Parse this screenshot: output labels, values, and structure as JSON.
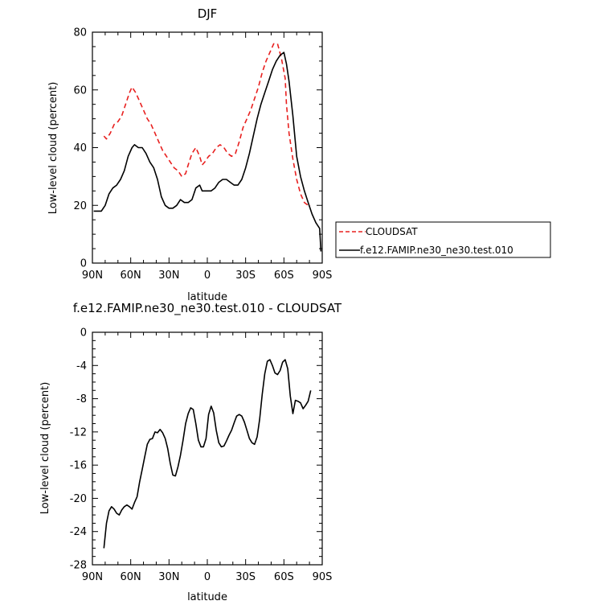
{
  "chart_data": [
    {
      "type": "line",
      "title": "DJF",
      "xlabel": "latitude",
      "ylabel": "Low-level cloud (percent)",
      "xlim": [
        -90,
        90
      ],
      "ylim": [
        0,
        80
      ],
      "x_ticks": [
        "90N",
        "60N",
        "30N",
        "0",
        "30S",
        "60S",
        "90S"
      ],
      "y_ticks": [
        "0",
        "20",
        "40",
        "60",
        "80"
      ],
      "legend_position": "right",
      "series": [
        {
          "name": "CLOUDSAT",
          "color": "#e8201f",
          "dash": "dashed",
          "x": [
            -81,
            -79,
            -76,
            -73,
            -70,
            -67,
            -64,
            -61,
            -59,
            -56,
            -53,
            -50,
            -47,
            -44,
            -41,
            -38,
            -35,
            -32,
            -29,
            -26,
            -23,
            -20,
            -17,
            -15,
            -12,
            -9,
            -6,
            -4,
            -2,
            1,
            4,
            7,
            10,
            13,
            16,
            19,
            22,
            25,
            28,
            31,
            34,
            37,
            40,
            43,
            46,
            49,
            52,
            55,
            58,
            61,
            62,
            64,
            67,
            70,
            73,
            76,
            79,
            81
          ],
          "values": [
            44,
            43,
            45,
            48,
            49,
            51,
            55,
            59,
            61,
            59,
            56,
            53,
            50,
            48,
            45,
            42,
            39,
            37,
            35,
            33,
            32,
            30,
            31,
            34,
            38,
            40,
            37,
            34,
            35,
            37,
            38,
            40,
            41,
            40,
            38,
            37,
            38,
            42,
            47,
            50,
            53,
            57,
            61,
            66,
            70,
            73,
            76,
            76,
            71,
            64,
            55,
            45,
            36,
            29,
            24,
            21,
            20,
            20
          ]
        },
        {
          "name": "f.e12.FAMIP.ne30_ne30.test.010",
          "color": "#000000",
          "dash": "solid",
          "x": [
            -89,
            -86,
            -83,
            -80,
            -77,
            -74,
            -71,
            -68,
            -65,
            -62,
            -59,
            -57,
            -54,
            -51,
            -48,
            -45,
            -42,
            -39,
            -36,
            -33,
            -30,
            -27,
            -24,
            -21,
            -18,
            -15,
            -12,
            -9,
            -6,
            -4,
            -2,
            0,
            3,
            6,
            9,
            12,
            15,
            18,
            21,
            24,
            27,
            30,
            33,
            36,
            39,
            42,
            45,
            48,
            51,
            54,
            57,
            60,
            62,
            64,
            67,
            70,
            73,
            76,
            79,
            82,
            85,
            88,
            89
          ],
          "values": [
            18,
            18,
            18,
            20,
            24,
            26,
            27,
            29,
            32,
            37,
            40,
            41,
            40,
            40,
            38,
            35,
            33,
            29,
            23,
            20,
            19,
            19,
            20,
            22,
            21,
            21,
            22,
            26,
            27,
            25,
            25,
            25,
            25,
            26,
            28,
            29,
            29,
            28,
            27,
            27,
            29,
            33,
            38,
            44,
            50,
            55,
            59,
            63,
            67,
            70,
            72,
            73,
            69,
            63,
            51,
            37,
            30,
            25,
            21,
            17,
            14,
            12,
            4
          ]
        }
      ]
    },
    {
      "type": "line",
      "title": "f.e12.FAMIP.ne30_ne30.test.010 - CLOUDSAT",
      "xlabel": "latitude",
      "ylabel": "Low-level cloud (percent)",
      "xlim": [
        -90,
        90
      ],
      "ylim": [
        -28,
        0
      ],
      "x_ticks": [
        "90N",
        "60N",
        "30N",
        "0",
        "30S",
        "60S",
        "90S"
      ],
      "y_ticks": [
        "-28",
        "-24",
        "-20",
        "-16",
        "-12",
        "-8",
        "-4",
        "0"
      ],
      "series": [
        {
          "color": "#000000",
          "dash": "solid",
          "x": [
            -81,
            -79,
            -77,
            -75,
            -73,
            -71,
            -69,
            -67,
            -65,
            -63,
            -61,
            -59,
            -57,
            -55,
            -53,
            -51,
            -49,
            -47,
            -45,
            -43,
            -41,
            -39,
            -37,
            -35,
            -33,
            -31,
            -29,
            -27,
            -25,
            -23,
            -21,
            -19,
            -17,
            -15,
            -13,
            -11,
            -9,
            -7,
            -5,
            -3,
            -1,
            1,
            3,
            5,
            7,
            9,
            11,
            13,
            15,
            17,
            19,
            21,
            23,
            25,
            27,
            29,
            31,
            33,
            35,
            37,
            39,
            41,
            43,
            45,
            47,
            49,
            51,
            53,
            55,
            57,
            59,
            61,
            63,
            65,
            67,
            69,
            71,
            73,
            75,
            77,
            79,
            81
          ],
          "values": [
            -26,
            -23,
            -21.5,
            -21,
            -21.3,
            -21.8,
            -22,
            -21.4,
            -21,
            -20.8,
            -21,
            -21.3,
            -20.5,
            -19.8,
            -18,
            -16.5,
            -15,
            -13.5,
            -12.9,
            -12.8,
            -12,
            -12.1,
            -11.7,
            -12.1,
            -12.8,
            -14,
            -15.8,
            -17.2,
            -17.3,
            -16.2,
            -14.8,
            -13,
            -11,
            -9.8,
            -9.1,
            -9.3,
            -11,
            -13,
            -13.8,
            -13.8,
            -12.8,
            -9.9,
            -8.9,
            -9.7,
            -11.8,
            -13.3,
            -13.8,
            -13.7,
            -13.1,
            -12.4,
            -11.8,
            -10.9,
            -10.1,
            -9.9,
            -10.1,
            -10.8,
            -11.8,
            -12.8,
            -13.3,
            -13.5,
            -12.6,
            -10.5,
            -7.5,
            -5,
            -3.5,
            -3.3,
            -4,
            -4.9,
            -5.1,
            -4.6,
            -3.6,
            -3.3,
            -4.4,
            -7.7,
            -9.8,
            -8.2,
            -8.3,
            -8.5,
            -9.2,
            -8.8,
            -8.3,
            -7
          ]
        }
      ]
    }
  ]
}
